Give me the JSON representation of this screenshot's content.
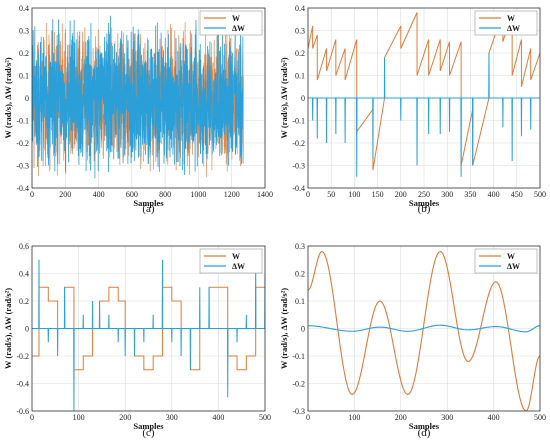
{
  "figure": {
    "colors": {
      "w": "#e07b3a",
      "dw": "#2a9fd8",
      "grid": "#d9d9d9",
      "axis": "#333333"
    }
  },
  "chart_data": [
    {
      "panel": "a",
      "caption": "(a)",
      "type": "line",
      "xlabel": "Samples",
      "ylabel": "W (rad/s), ΔW (rad/s²)",
      "xlim": [
        0,
        1400
      ],
      "ylim": [
        -0.4,
        0.4
      ],
      "xticks": [
        "0",
        "200",
        "400",
        "600",
        "800",
        "1000",
        "1200",
        "1400"
      ],
      "yticks": [
        "-0.4",
        "-0.3",
        "-0.2",
        "-0.1",
        "0",
        "0.1",
        "0.2",
        "0.3",
        "0.4"
      ],
      "grid": true,
      "legend_position": "top-right",
      "series": [
        {
          "name": "W",
          "color": "#e07b3a",
          "kind": "random-noise",
          "n": 1270,
          "amplitude": 0.37
        },
        {
          "name": "ΔW",
          "color": "#2a9fd8",
          "kind": "random-noise",
          "n": 1270,
          "amplitude": 0.37
        }
      ]
    },
    {
      "panel": "b",
      "caption": "(b)",
      "type": "line",
      "xlabel": "Samples",
      "ylabel": "W (rad/s), ΔW (rad/s²)",
      "xlim": [
        0,
        500
      ],
      "ylim": [
        -0.4,
        0.4
      ],
      "xticks": [
        "0",
        "50",
        "100",
        "150",
        "200",
        "250",
        "300",
        "350",
        "400",
        "450",
        "500"
      ],
      "yticks": [
        "-0.4",
        "-0.3",
        "-0.2",
        "-0.1",
        "0",
        "0.1",
        "0.2",
        "0.3",
        "0.4"
      ],
      "grid": true,
      "legend_position": "top-right",
      "series": [
        {
          "name": "W",
          "color": "#e07b3a",
          "kind": "sawtooth",
          "x": [
            0,
            10,
            10,
            20,
            20,
            40,
            40,
            60,
            60,
            80,
            80,
            105,
            105,
            140,
            140,
            165,
            165,
            200,
            200,
            235,
            235,
            260,
            260,
            285,
            285,
            305,
            305,
            330,
            330,
            355,
            355,
            390,
            390,
            420,
            420,
            440,
            440,
            460,
            460,
            480,
            480,
            500
          ],
          "y": [
            0.22,
            0.32,
            0.22,
            0.28,
            0.08,
            0.22,
            0.12,
            0.26,
            0.1,
            0.22,
            0.08,
            0.26,
            -0.15,
            -0.05,
            -0.32,
            0.0,
            0.18,
            0.32,
            0.22,
            0.38,
            0.1,
            0.26,
            0.1,
            0.26,
            0.12,
            0.25,
            0.1,
            0.25,
            -0.3,
            -0.05,
            -0.3,
            0.0,
            0.2,
            0.38,
            0.25,
            0.38,
            0.1,
            0.26,
            0.05,
            0.22,
            0.08,
            0.2
          ]
        },
        {
          "name": "ΔW",
          "color": "#2a9fd8",
          "kind": "impulses",
          "x": [
            10,
            20,
            40,
            60,
            80,
            105,
            140,
            165,
            200,
            235,
            260,
            285,
            305,
            330,
            355,
            390,
            420,
            440,
            460,
            480
          ],
          "y": [
            -0.1,
            -0.18,
            -0.2,
            -0.16,
            -0.2,
            -0.35,
            -0.27,
            0.18,
            -0.1,
            -0.3,
            -0.16,
            -0.16,
            -0.15,
            -0.35,
            -0.3,
            0.2,
            -0.13,
            -0.28,
            -0.17,
            -0.14
          ]
        }
      ]
    },
    {
      "panel": "c",
      "caption": "(c)",
      "type": "line",
      "xlabel": "Samples",
      "ylabel": "W (rad/s), ΔW (rad/s²)",
      "xlim": [
        0,
        500
      ],
      "ylim": [
        -0.6,
        0.6
      ],
      "xticks": [
        "0",
        "100",
        "200",
        "300",
        "400",
        "500"
      ],
      "yticks": [
        "-0.6",
        "-0.4",
        "-0.2",
        "0",
        "0.2",
        "0.4",
        "0.6"
      ],
      "grid": true,
      "legend_position": "top-right",
      "series": [
        {
          "name": "W",
          "color": "#e07b3a",
          "kind": "step",
          "x": [
            0,
            15,
            15,
            35,
            35,
            55,
            55,
            70,
            70,
            90,
            90,
            110,
            110,
            130,
            130,
            145,
            145,
            165,
            165,
            185,
            185,
            200,
            200,
            220,
            220,
            240,
            240,
            260,
            260,
            280,
            280,
            300,
            300,
            320,
            320,
            340,
            340,
            360,
            360,
            380,
            380,
            400,
            400,
            420,
            420,
            440,
            440,
            460,
            460,
            480,
            480,
            500
          ],
          "y": [
            -0.2,
            -0.2,
            0.3,
            0.3,
            0.2,
            0.2,
            0.0,
            0.0,
            0.3,
            0.3,
            -0.3,
            -0.3,
            -0.2,
            -0.2,
            0.0,
            0.0,
            0.2,
            0.2,
            0.3,
            0.3,
            0.2,
            0.2,
            0.0,
            0.0,
            -0.2,
            -0.2,
            -0.3,
            -0.3,
            -0.2,
            -0.2,
            0.3,
            0.3,
            0.2,
            0.2,
            0.0,
            0.0,
            -0.3,
            -0.3,
            0.0,
            0.0,
            0.3,
            0.3,
            0.3,
            0.3,
            -0.2,
            -0.2,
            -0.3,
            -0.3,
            -0.2,
            -0.2,
            0.3,
            0.3
          ]
        },
        {
          "name": "ΔW",
          "color": "#2a9fd8",
          "kind": "impulses",
          "x": [
            15,
            35,
            55,
            70,
            90,
            110,
            130,
            145,
            165,
            185,
            200,
            220,
            240,
            260,
            280,
            300,
            320,
            340,
            360,
            380,
            400,
            420,
            440,
            460,
            480,
            500
          ],
          "y": [
            0.5,
            -0.1,
            -0.2,
            0.3,
            -0.6,
            0.1,
            0.2,
            0.2,
            0.1,
            -0.1,
            -0.2,
            -0.2,
            -0.1,
            0.1,
            0.5,
            -0.1,
            -0.2,
            -0.3,
            0.3,
            0.3,
            0.0,
            -0.5,
            -0.1,
            0.1,
            0.5,
            0.4
          ]
        }
      ]
    },
    {
      "panel": "d",
      "caption": "(d)",
      "type": "line",
      "xlabel": "Samples",
      "ylabel": "W (rad/s), ΔW (rad/s²)",
      "xlim": [
        0,
        500
      ],
      "ylim": [
        -0.3,
        0.3
      ],
      "xticks": [
        "0",
        "100",
        "200",
        "300",
        "400",
        "500"
      ],
      "yticks": [
        "-0.3",
        "-0.2",
        "-0.1",
        "0",
        "0.1",
        "0.2",
        "0.3"
      ],
      "grid": true,
      "legend_position": "top-right",
      "series": [
        {
          "name": "W",
          "color": "#e07b3a",
          "kind": "smooth",
          "x": [
            0,
            30,
            95,
            155,
            215,
            285,
            345,
            405,
            470,
            500
          ],
          "y": [
            0.14,
            0.28,
            -0.24,
            0.1,
            -0.24,
            0.28,
            -0.12,
            0.17,
            -0.3,
            -0.1
          ]
        },
        {
          "name": "ΔW",
          "color": "#2a9fd8",
          "kind": "smooth",
          "x": [
            0,
            95,
            155,
            215,
            285,
            345,
            405,
            470,
            500
          ],
          "y": [
            0.01,
            -0.01,
            0.005,
            -0.01,
            0.012,
            -0.005,
            0.007,
            -0.012,
            0.01
          ]
        }
      ]
    }
  ]
}
